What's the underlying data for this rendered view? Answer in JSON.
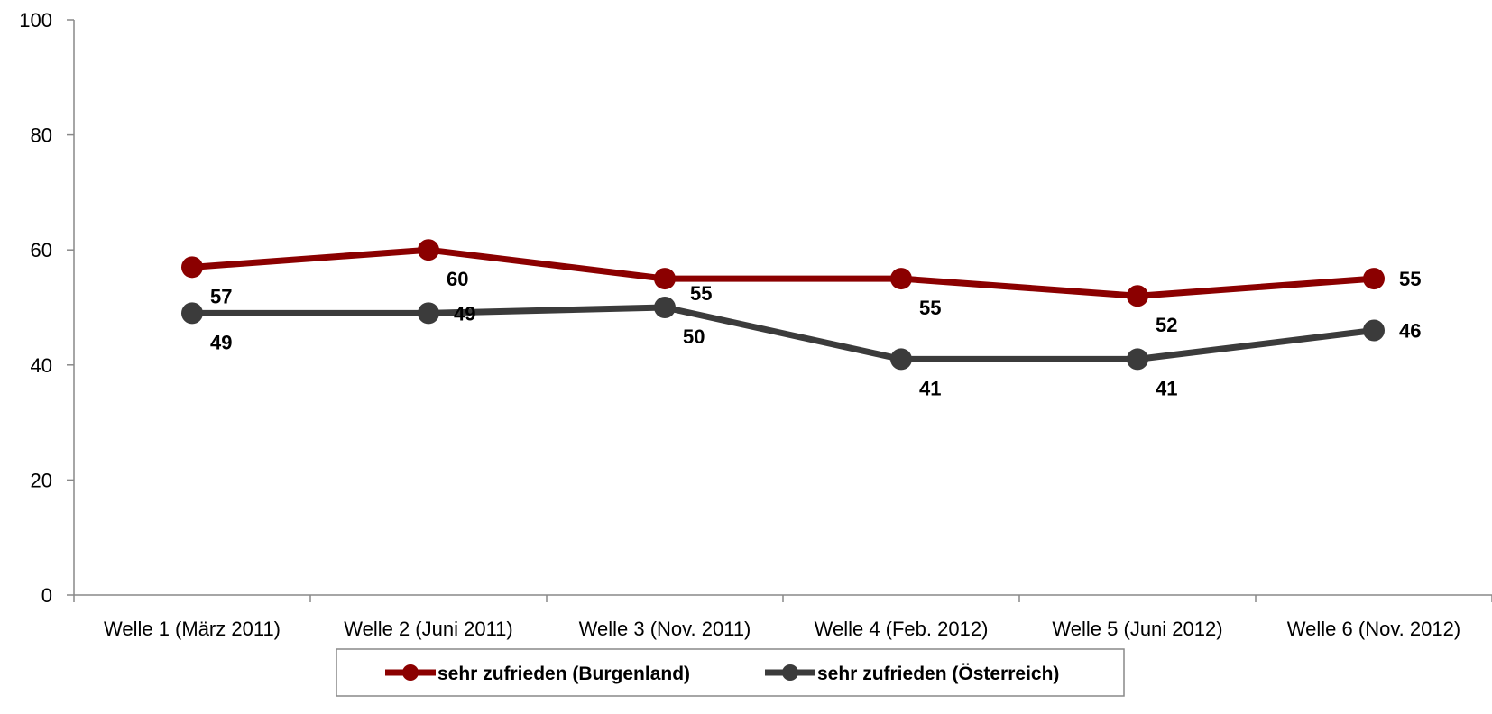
{
  "chart_data": {
    "type": "line",
    "categories": [
      "Welle 1 (März 2011)",
      "Welle 2 (Juni 2011)",
      "Welle 3 (Nov. 2011)",
      "Welle 4 (Feb. 2012)",
      "Welle 5 (Juni 2012)",
      "Welle 6 (Nov. 2012)"
    ],
    "series": [
      {
        "name": "sehr zufrieden (Burgenland)",
        "values": [
          57,
          60,
          55,
          55,
          52,
          55
        ],
        "color": "#8b0000",
        "label_side": [
          "below",
          "below",
          "below-right",
          "below",
          "below",
          "right"
        ]
      },
      {
        "name": "sehr zufrieden (Österreich)",
        "values": [
          49,
          49,
          50,
          41,
          41,
          46
        ],
        "color": "#3b3b3b",
        "label_side": [
          "below",
          "right",
          "below",
          "below",
          "below",
          "right"
        ]
      }
    ],
    "ylim": [
      0,
      100
    ],
    "yticks": [
      0,
      20,
      40,
      60,
      80,
      100
    ],
    "title": "",
    "xlabel": "",
    "ylabel": "",
    "grid": false,
    "legend_position": "bottom"
  }
}
